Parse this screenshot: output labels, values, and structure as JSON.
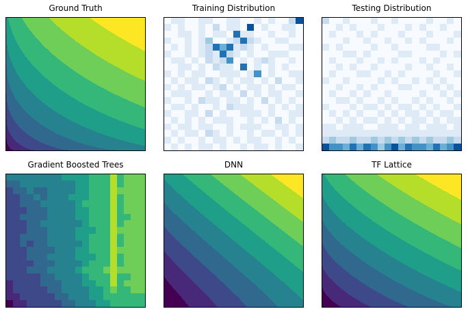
{
  "figure": {
    "background": "#ffffff",
    "title_color": "#000000",
    "border_color": "#000000"
  },
  "chart_data": {
    "type": "heatmap",
    "description": "2x3 grid of matplotlib-style panels: a ground-truth contour surface, train/test density heatmaps, and three model prediction surfaces. No axis ticks or labels are shown; all panels span x in [0,1] (right) and y in [0,1] (up) with values in [0,1].",
    "layout": {
      "rows": 2,
      "cols": 3,
      "ticks": "none",
      "legend": "none"
    },
    "colormaps": {
      "viridis": [
        "#440154",
        "#482878",
        "#3e4989",
        "#31688e",
        "#26828e",
        "#1f9e89",
        "#35b779",
        "#6ece58",
        "#b5de2b",
        "#fde725"
      ],
      "blues": [
        "#f7fbff",
        "#deebf7",
        "#c6dbef",
        "#9ecae1",
        "#6baed6",
        "#4292c6",
        "#2171b5",
        "#08519c",
        "#08306b"
      ]
    },
    "panels": [
      {
        "title": "Ground Truth",
        "type": "contourf",
        "colormap": "viridis",
        "levels": 10,
        "value_range": [
          0,
          1
        ],
        "surface": {
          "kind": "weighted_power_sum",
          "formula": "f = wx*x^px + wy*y^py",
          "wx": 0.45,
          "px": 0.5,
          "wy": 0.55,
          "py": 0.7
        }
      },
      {
        "title": "Training Distribution",
        "type": "heatmap",
        "colormap": "blues",
        "cells": "20x20",
        "encoding": "one hex digit per cell, 0 (empty/white) to f (max density/dark blue); row 0 is the top row",
        "grid": [
          "0110021001200102003d",
          "201001030210d0100120",
          "0012010210b120020010",
          "10020150023c41001200",
          "0101023b8c2310100021",
          "20010132c42010012100",
          "011020413a0102310010",
          "00120103120b02010200",
          "1020210021201a010012",
          "02012032010120103001",
          "10101202301021020110",
          "01210020120302012002",
          "20010312021010301020",
          "01202001032120010201",
          "10021030100212020012",
          "02010201210020103010",
          "10120120020121001201",
          "01011032010020210102",
          "20100201102012001020",
          "01020110200101202001"
        ]
      },
      {
        "title": "Testing Distribution",
        "type": "heatmap",
        "colormap": "blues",
        "cells": "20x20",
        "encoding": "one hex digit per cell, 0 (empty/white) to f (max density/dark blue); row 0 is the top row; density concentrated along the bottom edge",
        "grid": [
          "30010002001000010010",
          "00101000100010100100",
          "01000101000100010001",
          "00010010010010100010",
          "10100001001000011000",
          "00011010000110000101",
          "01000100101000101000",
          "00101001000010010010",
          "01000110010100001001",
          "10010000101001010100",
          "00100101000110001010",
          "01001010010000100101",
          "00110100101001010010",
          "10001011010110101001",
          "01010100101011010110",
          "00101011010101101011",
          "11011100111011011101",
          "21121122112121121221",
          "45346435453645354464",
          "e9a7b8c96ad7b9a8c7ae"
        ]
      },
      {
        "title": "Gradient Boosted Trees",
        "type": "heatmap",
        "colormap": "viridis",
        "cells": "20x20",
        "encoding": "one hex digit per cell, value = digit/15 in [0,1], rendered with the same 10 discrete viridis levels as the contour panels (blocky piecewise-constant prediction, low on the left rising to high on the right with a bright vertical streak near x=0.78)",
        "levels": 10,
        "value_range": [
          0,
          1
        ],
        "grid": [
          "66777777888899acabbb",
          "55666666778899acabbb",
          "45565567778899acbbbb",
          "4455656678889aacabbb",
          "44555667778999acabbb",
          "34455566778899acabbb",
          "44555566678899acaabb",
          "34455666777899acabbb",
          "44455567778889acbbbb",
          "34555566778899acabbb",
          "44545566777899adabbb",
          "34455556678899adbbbb",
          "44455566778889acabbb",
          "33445556677899acabbb",
          "344555667789aabdbbbb",
          "33444556677899acaabb",
          "234445556678899cabbb",
          "233444556677889baabb",
          "223344455667889a9aaa",
          "122334445566788999aa"
        ]
      },
      {
        "title": "DNN",
        "type": "contourf",
        "colormap": "viridis",
        "levels": 10,
        "value_range": [
          0,
          1
        ],
        "surface": {
          "kind": "weighted_power_sum",
          "formula": "f = wx*x^px + wy*y^py",
          "wx": 0.48,
          "px": 0.9,
          "wy": 0.52,
          "py": 1.1
        }
      },
      {
        "title": "TF Lattice",
        "type": "contourf",
        "colormap": "viridis",
        "levels": 10,
        "value_range": [
          0,
          1
        ],
        "surface": {
          "kind": "weighted_power_sum",
          "formula": "f = wx*x^px + wy*y^py",
          "wx": 0.42,
          "px": 0.7,
          "wy": 0.58,
          "py": 0.9
        }
      }
    ]
  }
}
